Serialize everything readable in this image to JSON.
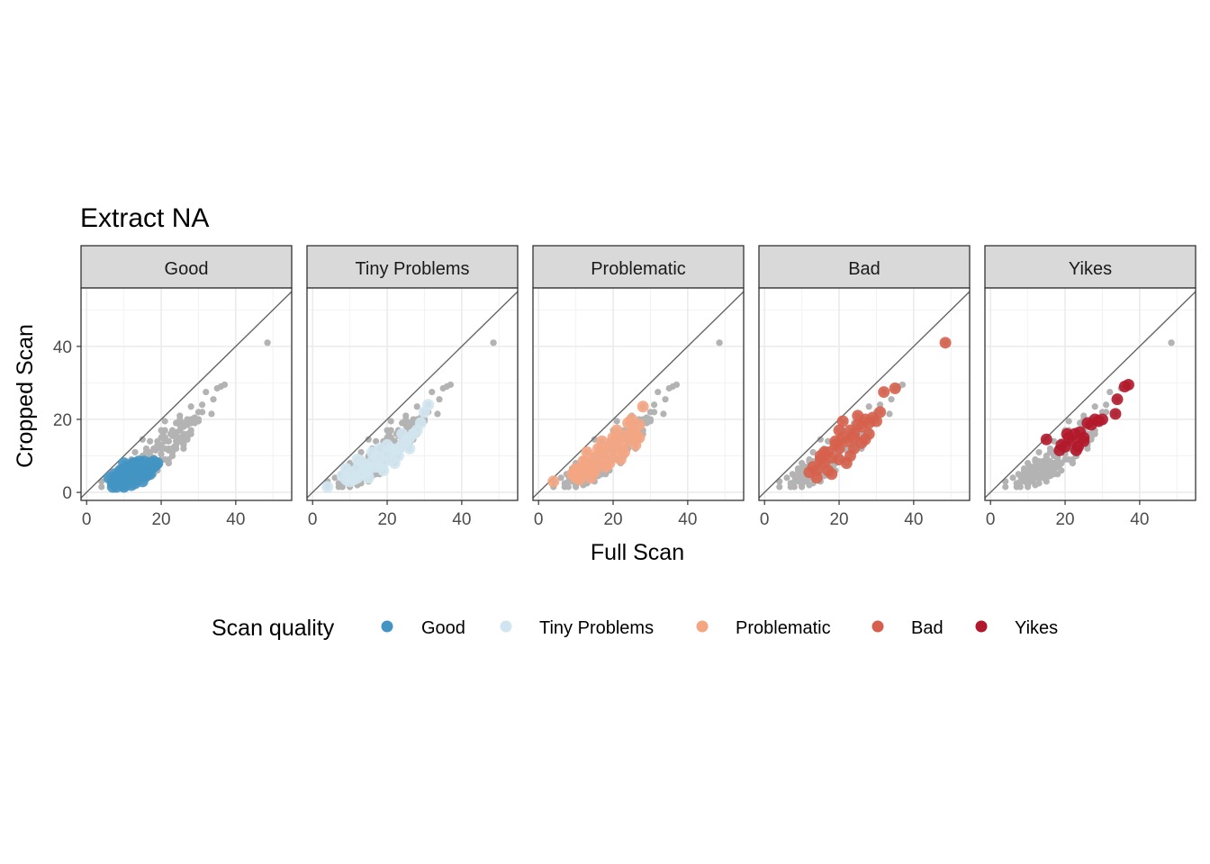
{
  "chart_data": {
    "type": "scatter",
    "title": "Extract NA",
    "xlabel": "Full Scan",
    "ylabel": "Cropped Scan",
    "xlim": [
      -1.5,
      55
    ],
    "ylim": [
      -2.2,
      56
    ],
    "x_ticks": [
      0,
      20,
      40
    ],
    "y_ticks": [
      0,
      20,
      40
    ],
    "grid": true,
    "reference_line": "y = x",
    "legend_title": "Scan quality",
    "legend_position": "bottom",
    "background_color": "#b3b3b3",
    "panels": [
      "Good",
      "Tiny Problems",
      "Problematic",
      "Bad",
      "Yikes"
    ],
    "series": [
      {
        "name": "Good",
        "color": "#4393c3",
        "x": [
          6,
          7,
          7.5,
          8,
          8.5,
          9,
          9.5,
          10,
          10.5,
          11,
          11.5,
          12,
          12.5,
          13,
          13.5,
          14,
          14.5,
          15,
          15.5,
          16,
          16.5,
          17,
          17.5,
          18,
          18.5,
          19,
          8,
          9,
          10,
          11,
          12,
          13,
          14,
          15,
          16,
          17,
          7,
          9,
          11,
          13,
          15,
          17,
          10,
          12,
          14,
          16,
          18
        ],
        "y": [
          4,
          2.5,
          5,
          1.5,
          4.5,
          3,
          6,
          2,
          5,
          7,
          3.5,
          5.5,
          8,
          4,
          6.5,
          5,
          7.5,
          6,
          8.5,
          7,
          5.5,
          8,
          7,
          8.5,
          7.5,
          8,
          3,
          6,
          1.5,
          4,
          7,
          2.5,
          6,
          4.5,
          6,
          6.5,
          1.5,
          4.5,
          3,
          8,
          3,
          5,
          8,
          2,
          8.5,
          4.5,
          7
        ]
      },
      {
        "name": "Tiny Problems",
        "color": "#d1e5f0",
        "x": [
          4,
          8,
          9,
          10,
          11,
          12,
          13,
          14,
          15,
          16,
          17,
          18,
          19,
          20,
          21,
          22,
          23,
          24,
          25,
          26,
          27,
          28,
          29,
          30,
          31,
          9,
          11,
          13,
          15,
          17,
          19,
          21,
          23,
          10,
          12,
          14,
          16,
          18,
          20,
          22,
          24,
          26,
          12,
          15,
          18
        ],
        "y": [
          1.5,
          4.5,
          3.5,
          5.5,
          4,
          6.5,
          5,
          7.5,
          6,
          8.5,
          7,
          9.5,
          8,
          10.5,
          9,
          11.5,
          12,
          13,
          14,
          15,
          16,
          17,
          19,
          22,
          24,
          6.5,
          3.5,
          8.5,
          4,
          10,
          6,
          12,
          10,
          3,
          9,
          5,
          11,
          7,
          13,
          8,
          16,
          12,
          4,
          7,
          12
        ]
      },
      {
        "name": "Problematic",
        "color": "#f4a582",
        "x": [
          4,
          9,
          10,
          11,
          12,
          13,
          14,
          15,
          16,
          17,
          18,
          19,
          20,
          21,
          22,
          23,
          24,
          25,
          26,
          27,
          28,
          10,
          12,
          14,
          16,
          18,
          20,
          22,
          24,
          26,
          11,
          13,
          15,
          17,
          19,
          21,
          23,
          25,
          27
        ],
        "y": [
          3,
          5,
          4,
          6.5,
          5,
          8,
          6.5,
          9.5,
          7.5,
          11,
          9,
          12.5,
          10.5,
          14,
          12,
          15.5,
          14,
          17,
          16,
          18.5,
          23.5,
          6.5,
          8.5,
          4,
          12,
          7,
          15,
          9,
          19,
          13,
          3.5,
          11,
          5.5,
          14,
          8,
          17,
          11,
          20,
          15
        ]
      },
      {
        "name": "Bad",
        "color": "#d6604d",
        "x": [
          12,
          13,
          14,
          15,
          16,
          17,
          18,
          19,
          20,
          21,
          22,
          23,
          24,
          25,
          26,
          27,
          28,
          29,
          30,
          31,
          32,
          35,
          48.5,
          14,
          16,
          18,
          20,
          22,
          24,
          26,
          28,
          15,
          19,
          21,
          23,
          25,
          27,
          17,
          20,
          24
        ],
        "y": [
          5.5,
          7,
          6,
          9,
          8,
          11,
          9.5,
          13,
          12,
          15,
          14,
          17,
          16,
          18.5,
          18,
          20,
          19,
          20.5,
          19.5,
          22,
          27.5,
          28.5,
          41,
          4,
          11,
          5,
          17,
          8,
          12,
          13.5,
          16,
          10,
          14,
          19.5,
          10,
          21,
          14.5,
          6,
          9,
          15
        ]
      },
      {
        "name": "Yikes",
        "color": "#b2182b",
        "x": [
          15,
          18.5,
          19,
          20,
          20.5,
          21,
          22,
          22.5,
          23,
          24,
          25,
          26,
          27,
          28,
          29,
          30,
          33.5,
          34,
          36,
          37,
          23.5,
          25
        ],
        "y": [
          14.5,
          11.5,
          13,
          12.5,
          16,
          15,
          14,
          16,
          11.5,
          16.5,
          15,
          19,
          18.5,
          20,
          19.5,
          20,
          21.5,
          25.5,
          29,
          29.5,
          12.5,
          14
        ]
      }
    ]
  }
}
